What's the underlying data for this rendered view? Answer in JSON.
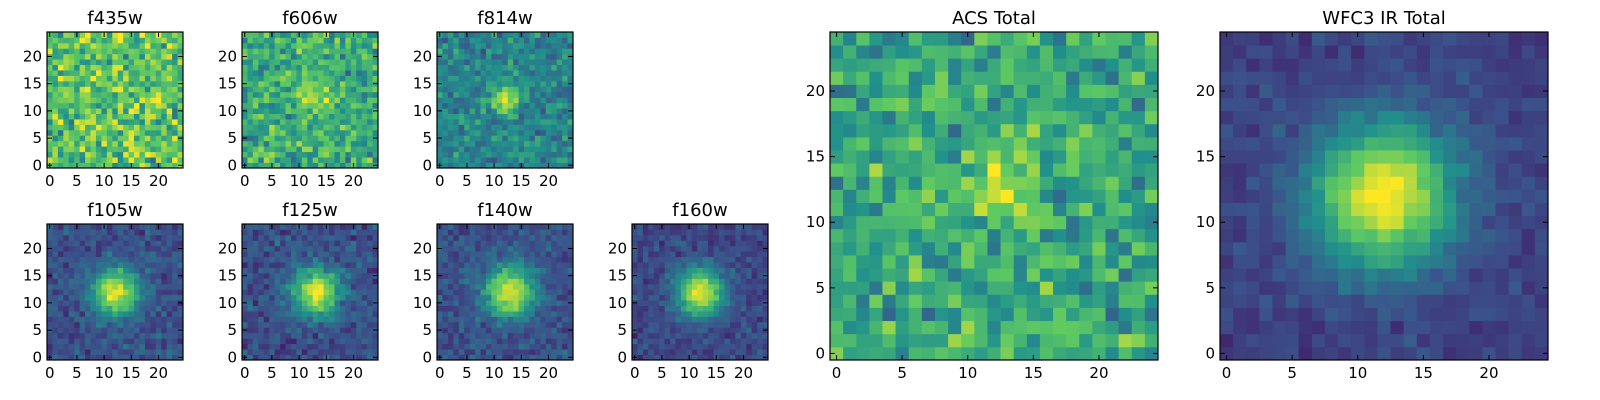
{
  "chart_data": {
    "type": "heatmap",
    "colormap": [
      "#440154",
      "#3b528b",
      "#21918c",
      "#5ec962",
      "#fde725"
    ],
    "panels": [
      {
        "title": "f435w",
        "grid": [
          25,
          25
        ],
        "xlim": [
          -0.5,
          24.5
        ],
        "ylim": [
          -0.5,
          24.5
        ],
        "xticks": [
          0,
          5,
          10,
          15,
          20
        ],
        "yticks": [
          0,
          5,
          10,
          15,
          20
        ],
        "model": {
          "background": 0.72,
          "peak": 0.0,
          "sigma": 3.0,
          "noise": 0.2,
          "center": [
            12,
            12
          ]
        }
      },
      {
        "title": "f606w",
        "grid": [
          25,
          25
        ],
        "xlim": [
          -0.5,
          24.5
        ],
        "ylim": [
          -0.5,
          24.5
        ],
        "xticks": [
          0,
          5,
          10,
          15,
          20
        ],
        "yticks": [
          0,
          5,
          10,
          15,
          20
        ],
        "model": {
          "background": 0.62,
          "peak": 0.22,
          "sigma": 2.2,
          "noise": 0.17,
          "center": [
            13,
            13
          ]
        }
      },
      {
        "title": "f814w",
        "grid": [
          25,
          25
        ],
        "xlim": [
          -0.5,
          24.5
        ],
        "ylim": [
          -0.5,
          24.5
        ],
        "xticks": [
          0,
          5,
          10,
          15,
          20
        ],
        "yticks": [
          0,
          5,
          10,
          15,
          20
        ],
        "model": {
          "background": 0.45,
          "peak": 0.5,
          "sigma": 1.8,
          "noise": 0.12,
          "center": [
            12,
            12
          ]
        }
      },
      {
        "title": "f105w",
        "grid": [
          25,
          25
        ],
        "xlim": [
          -0.5,
          24.5
        ],
        "ylim": [
          -0.5,
          24.5
        ],
        "xticks": [
          0,
          5,
          10,
          15,
          20
        ],
        "yticks": [
          0,
          5,
          10,
          15,
          20
        ],
        "model": {
          "background": 0.25,
          "peak": 0.72,
          "sigma": 3.0,
          "noise": 0.08,
          "center": [
            12,
            12
          ]
        }
      },
      {
        "title": "f125w",
        "grid": [
          25,
          25
        ],
        "xlim": [
          -0.5,
          24.5
        ],
        "ylim": [
          -0.5,
          24.5
        ],
        "xticks": [
          0,
          5,
          10,
          15,
          20
        ],
        "yticks": [
          0,
          5,
          10,
          15,
          20
        ],
        "model": {
          "background": 0.25,
          "peak": 0.72,
          "sigma": 3.0,
          "noise": 0.09,
          "center": [
            13,
            12
          ]
        }
      },
      {
        "title": "f140w",
        "grid": [
          25,
          25
        ],
        "xlim": [
          -0.5,
          24.5
        ],
        "ylim": [
          -0.5,
          24.5
        ],
        "xticks": [
          0,
          5,
          10,
          15,
          20
        ],
        "yticks": [
          0,
          5,
          10,
          15,
          20
        ],
        "model": {
          "background": 0.25,
          "peak": 0.72,
          "sigma": 3.2,
          "noise": 0.08,
          "center": [
            13,
            12
          ]
        }
      },
      {
        "title": "f160w",
        "grid": [
          25,
          25
        ],
        "xlim": [
          -0.5,
          24.5
        ],
        "ylim": [
          -0.5,
          24.5
        ],
        "xticks": [
          0,
          5,
          10,
          15,
          20
        ],
        "yticks": [
          0,
          5,
          10,
          15,
          20
        ],
        "model": {
          "background": 0.22,
          "peak": 0.75,
          "sigma": 3.0,
          "noise": 0.07,
          "center": [
            12,
            12
          ]
        }
      },
      {
        "title": "ACS Total",
        "grid": [
          25,
          25
        ],
        "xlim": [
          -0.5,
          24.5
        ],
        "ylim": [
          -0.5,
          24.5
        ],
        "xticks": [
          0,
          5,
          10,
          15,
          20
        ],
        "yticks": [
          0,
          5,
          10,
          15,
          20
        ],
        "model": {
          "background": 0.6,
          "peak": 0.35,
          "sigma": 1.6,
          "noise": 0.16,
          "center": [
            13,
            13
          ]
        }
      },
      {
        "title": "WFC3 IR Total",
        "grid": [
          25,
          25
        ],
        "xlim": [
          -0.5,
          24.5
        ],
        "ylim": [
          -0.5,
          24.5
        ],
        "xticks": [
          0,
          5,
          10,
          15,
          20
        ],
        "yticks": [
          0,
          5,
          10,
          15,
          20
        ],
        "model": {
          "background": 0.2,
          "peak": 0.8,
          "sigma": 3.8,
          "noise": 0.05,
          "center": [
            12,
            12
          ]
        }
      }
    ]
  }
}
